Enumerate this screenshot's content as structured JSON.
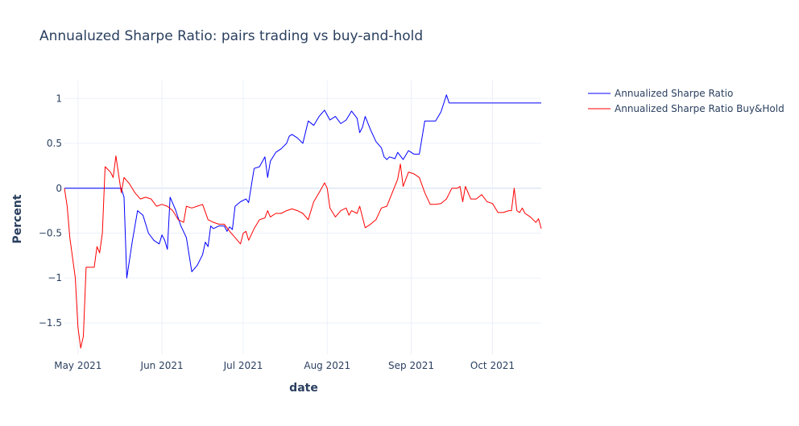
{
  "chart_data": {
    "type": "line",
    "title": "Annualuzed Sharpe Ratio: pairs trading vs buy-and-hold",
    "xlabel": "date",
    "ylabel": "Percent",
    "x_ticks": [
      "May 2021",
      "Jun 2021",
      "Jul 2021",
      "Aug 2021",
      "Sep 2021",
      "Oct 2021"
    ],
    "x_tick_dates": [
      "2021-05-01",
      "2021-06-01",
      "2021-07-01",
      "2021-08-01",
      "2021-09-01",
      "2021-10-01"
    ],
    "x_range": [
      "2021-04-26",
      "2021-10-19"
    ],
    "y_ticks": [
      1,
      0.5,
      0,
      -0.5,
      -1,
      -1.5
    ],
    "y_tick_labels": [
      "1",
      "0.5",
      "0",
      "−0.5",
      "−1",
      "−1.5"
    ],
    "ylim": [
      -1.85,
      1.2
    ],
    "grid": true,
    "legend_position": "top-right",
    "series": [
      {
        "name": "Annualized Sharpe Ratio",
        "color": "#0000ff",
        "points": [
          [
            "2021-04-26",
            0.0
          ],
          [
            "2021-05-17",
            0.0
          ],
          [
            "2021-05-18",
            -0.1
          ],
          [
            "2021-05-19",
            -1.0
          ],
          [
            "2021-05-21",
            -0.6
          ],
          [
            "2021-05-23",
            -0.25
          ],
          [
            "2021-05-25",
            -0.3
          ],
          [
            "2021-05-27",
            -0.5
          ],
          [
            "2021-05-29",
            -0.58
          ],
          [
            "2021-05-31",
            -0.62
          ],
          [
            "2021-06-01",
            -0.52
          ],
          [
            "2021-06-02",
            -0.58
          ],
          [
            "2021-06-03",
            -0.68
          ],
          [
            "2021-06-04",
            -0.1
          ],
          [
            "2021-06-06",
            -0.24
          ],
          [
            "2021-06-08",
            -0.42
          ],
          [
            "2021-06-10",
            -0.55
          ],
          [
            "2021-06-12",
            -0.93
          ],
          [
            "2021-06-14",
            -0.86
          ],
          [
            "2021-06-16",
            -0.74
          ],
          [
            "2021-06-17",
            -0.6
          ],
          [
            "2021-06-18",
            -0.65
          ],
          [
            "2021-06-19",
            -0.42
          ],
          [
            "2021-06-20",
            -0.45
          ],
          [
            "2021-06-22",
            -0.42
          ],
          [
            "2021-06-24",
            -0.42
          ],
          [
            "2021-06-25",
            -0.48
          ],
          [
            "2021-06-26",
            -0.43
          ],
          [
            "2021-06-27",
            -0.46
          ],
          [
            "2021-06-28",
            -0.2
          ],
          [
            "2021-06-30",
            -0.15
          ],
          [
            "2021-07-02",
            -0.12
          ],
          [
            "2021-07-03",
            -0.16
          ],
          [
            "2021-07-05",
            0.22
          ],
          [
            "2021-07-07",
            0.24
          ],
          [
            "2021-07-09",
            0.35
          ],
          [
            "2021-07-10",
            0.12
          ],
          [
            "2021-07-11",
            0.3
          ],
          [
            "2021-07-13",
            0.4
          ],
          [
            "2021-07-15",
            0.44
          ],
          [
            "2021-07-17",
            0.5
          ],
          [
            "2021-07-18",
            0.58
          ],
          [
            "2021-07-19",
            0.6
          ],
          [
            "2021-07-21",
            0.56
          ],
          [
            "2021-07-23",
            0.5
          ],
          [
            "2021-07-25",
            0.75
          ],
          [
            "2021-07-27",
            0.7
          ],
          [
            "2021-07-29",
            0.8
          ],
          [
            "2021-07-31",
            0.87
          ],
          [
            "2021-08-02",
            0.76
          ],
          [
            "2021-08-04",
            0.8
          ],
          [
            "2021-08-06",
            0.72
          ],
          [
            "2021-08-08",
            0.76
          ],
          [
            "2021-08-10",
            0.86
          ],
          [
            "2021-08-12",
            0.78
          ],
          [
            "2021-08-13",
            0.62
          ],
          [
            "2021-08-14",
            0.68
          ],
          [
            "2021-08-15",
            0.8
          ],
          [
            "2021-08-17",
            0.65
          ],
          [
            "2021-08-19",
            0.52
          ],
          [
            "2021-08-21",
            0.45
          ],
          [
            "2021-08-22",
            0.35
          ],
          [
            "2021-08-23",
            0.32
          ],
          [
            "2021-08-24",
            0.35
          ],
          [
            "2021-08-26",
            0.33
          ],
          [
            "2021-08-27",
            0.4
          ],
          [
            "2021-08-29",
            0.32
          ],
          [
            "2021-08-31",
            0.42
          ],
          [
            "2021-09-02",
            0.38
          ],
          [
            "2021-09-04",
            0.38
          ],
          [
            "2021-09-06",
            0.75
          ],
          [
            "2021-09-08",
            0.75
          ],
          [
            "2021-09-10",
            0.75
          ],
          [
            "2021-09-12",
            0.85
          ],
          [
            "2021-09-14",
            1.04
          ],
          [
            "2021-09-15",
            0.95
          ],
          [
            "2021-10-19",
            0.95
          ]
        ]
      },
      {
        "name": "Annualized Sharpe Ratio Buy&Hold",
        "color": "#ff0000",
        "points": [
          [
            "2021-04-26",
            0.0
          ],
          [
            "2021-04-27",
            -0.2
          ],
          [
            "2021-04-28",
            -0.55
          ],
          [
            "2021-04-30",
            -1.0
          ],
          [
            "2021-05-01",
            -1.55
          ],
          [
            "2021-05-02",
            -1.78
          ],
          [
            "2021-05-03",
            -1.65
          ],
          [
            "2021-05-04",
            -0.88
          ],
          [
            "2021-05-06",
            -0.88
          ],
          [
            "2021-05-07",
            -0.88
          ],
          [
            "2021-05-08",
            -0.65
          ],
          [
            "2021-05-09",
            -0.72
          ],
          [
            "2021-05-10",
            -0.5
          ],
          [
            "2021-05-11",
            0.24
          ],
          [
            "2021-05-13",
            0.18
          ],
          [
            "2021-05-14",
            0.12
          ],
          [
            "2021-05-15",
            0.36
          ],
          [
            "2021-05-16",
            0.15
          ],
          [
            "2021-05-17",
            -0.05
          ],
          [
            "2021-05-18",
            0.12
          ],
          [
            "2021-05-20",
            0.05
          ],
          [
            "2021-05-22",
            -0.05
          ],
          [
            "2021-05-24",
            -0.12
          ],
          [
            "2021-05-26",
            -0.1
          ],
          [
            "2021-05-28",
            -0.12
          ],
          [
            "2021-05-30",
            -0.2
          ],
          [
            "2021-06-01",
            -0.18
          ],
          [
            "2021-06-03",
            -0.2
          ],
          [
            "2021-06-05",
            -0.25
          ],
          [
            "2021-06-07",
            -0.35
          ],
          [
            "2021-06-09",
            -0.38
          ],
          [
            "2021-06-10",
            -0.2
          ],
          [
            "2021-06-12",
            -0.22
          ],
          [
            "2021-06-14",
            -0.2
          ],
          [
            "2021-06-16",
            -0.18
          ],
          [
            "2021-06-18",
            -0.35
          ],
          [
            "2021-06-20",
            -0.38
          ],
          [
            "2021-06-22",
            -0.4
          ],
          [
            "2021-06-24",
            -0.4
          ],
          [
            "2021-06-26",
            -0.48
          ],
          [
            "2021-06-28",
            -0.55
          ],
          [
            "2021-06-30",
            -0.62
          ],
          [
            "2021-07-01",
            -0.5
          ],
          [
            "2021-07-02",
            -0.48
          ],
          [
            "2021-07-03",
            -0.58
          ],
          [
            "2021-07-05",
            -0.45
          ],
          [
            "2021-07-07",
            -0.35
          ],
          [
            "2021-07-09",
            -0.33
          ],
          [
            "2021-07-10",
            -0.25
          ],
          [
            "2021-07-11",
            -0.32
          ],
          [
            "2021-07-13",
            -0.28
          ],
          [
            "2021-07-15",
            -0.28
          ],
          [
            "2021-07-17",
            -0.25
          ],
          [
            "2021-07-19",
            -0.23
          ],
          [
            "2021-07-21",
            -0.25
          ],
          [
            "2021-07-23",
            -0.28
          ],
          [
            "2021-07-25",
            -0.35
          ],
          [
            "2021-07-27",
            -0.15
          ],
          [
            "2021-07-29",
            -0.05
          ],
          [
            "2021-07-31",
            0.06
          ],
          [
            "2021-08-01",
            0.0
          ],
          [
            "2021-08-02",
            -0.22
          ],
          [
            "2021-08-04",
            -0.32
          ],
          [
            "2021-08-06",
            -0.25
          ],
          [
            "2021-08-08",
            -0.22
          ],
          [
            "2021-08-09",
            -0.3
          ],
          [
            "2021-08-10",
            -0.25
          ],
          [
            "2021-08-12",
            -0.28
          ],
          [
            "2021-08-13",
            -0.2
          ],
          [
            "2021-08-15",
            -0.44
          ],
          [
            "2021-08-17",
            -0.4
          ],
          [
            "2021-08-19",
            -0.35
          ],
          [
            "2021-08-21",
            -0.22
          ],
          [
            "2021-08-23",
            -0.2
          ],
          [
            "2021-08-25",
            -0.05
          ],
          [
            "2021-08-27",
            0.1
          ],
          [
            "2021-08-28",
            0.27
          ],
          [
            "2021-08-29",
            0.02
          ],
          [
            "2021-08-31",
            0.18
          ],
          [
            "2021-09-02",
            0.16
          ],
          [
            "2021-09-04",
            0.12
          ],
          [
            "2021-09-06",
            -0.05
          ],
          [
            "2021-09-08",
            -0.18
          ],
          [
            "2021-09-10",
            -0.18
          ],
          [
            "2021-09-12",
            -0.17
          ],
          [
            "2021-09-14",
            -0.12
          ],
          [
            "2021-09-16",
            0.0
          ],
          [
            "2021-09-18",
            0.0
          ],
          [
            "2021-09-19",
            0.02
          ],
          [
            "2021-09-20",
            -0.15
          ],
          [
            "2021-09-21",
            0.02
          ],
          [
            "2021-09-23",
            -0.12
          ],
          [
            "2021-09-25",
            -0.12
          ],
          [
            "2021-09-27",
            -0.07
          ],
          [
            "2021-09-29",
            -0.15
          ],
          [
            "2021-10-01",
            -0.17
          ],
          [
            "2021-10-03",
            -0.27
          ],
          [
            "2021-10-05",
            -0.27
          ],
          [
            "2021-10-07",
            -0.25
          ],
          [
            "2021-10-08",
            -0.25
          ],
          [
            "2021-10-09",
            0.0
          ],
          [
            "2021-10-10",
            -0.25
          ],
          [
            "2021-10-11",
            -0.27
          ],
          [
            "2021-10-12",
            -0.22
          ],
          [
            "2021-10-13",
            -0.28
          ],
          [
            "2021-10-14",
            -0.3
          ],
          [
            "2021-10-15",
            -0.32
          ],
          [
            "2021-10-16",
            -0.35
          ],
          [
            "2021-10-17",
            -0.38
          ],
          [
            "2021-10-18",
            -0.34
          ],
          [
            "2021-10-19",
            -0.45
          ]
        ]
      }
    ]
  }
}
